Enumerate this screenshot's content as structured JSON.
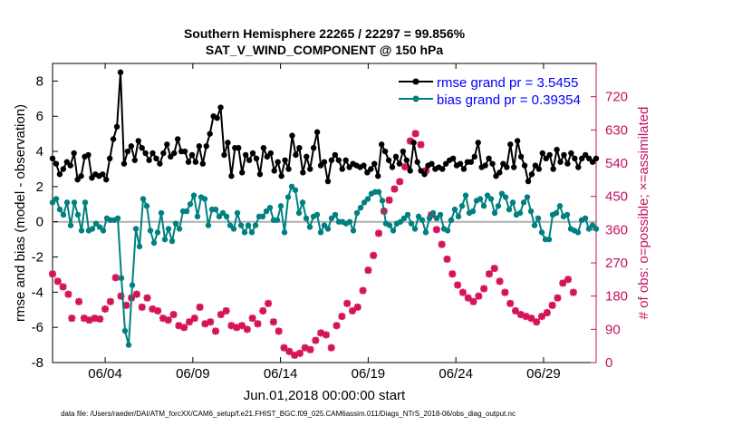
{
  "chart_data": {
    "type": "line",
    "title": "Southern Hemisphere 22265 / 22297 = 99.856%",
    "subtitle": "SAT_V_WIND_COMPONENT @ 150 hPa",
    "xlabel": "Jun.01,2018 00:00:00 start",
    "ylabel": "rmse and bias (model - observation)",
    "ylabel_right": "# of obs: o=possible; ×=assimilated",
    "xlim": [
      1,
      32
    ],
    "ylim": [
      -8,
      9
    ],
    "ylim_right": [
      0,
      810
    ],
    "x_ticks": [
      4,
      9,
      14,
      19,
      24,
      29
    ],
    "x_tick_labels": [
      "06/04",
      "06/09",
      "06/14",
      "06/19",
      "06/24",
      "06/29"
    ],
    "y_ticks": [
      -8,
      -6,
      -4,
      -2,
      0,
      2,
      4,
      6,
      8
    ],
    "y_tick_labels": [
      "-8",
      "-6",
      "-4",
      "-2",
      "0",
      "2",
      "4",
      "6",
      "8"
    ],
    "y_right_ticks": [
      0,
      90,
      180,
      270,
      360,
      450,
      540,
      630,
      720
    ],
    "y_right_tick_labels": [
      "0",
      "90",
      "180",
      "270",
      "360",
      "450",
      "540",
      "630",
      "720"
    ],
    "zero_line": 0,
    "colors": {
      "rmse": "#000000",
      "bias": "#008080",
      "obs": "#d4145a",
      "right_axis": "#c3125e",
      "zero_line": "#b0b0b0",
      "legend_text": "#0000ff"
    },
    "series": [
      {
        "name": "rmse grand pr = 3.5455",
        "values": [
          3.6,
          3.3,
          2.7,
          3.0,
          3.4,
          3.2,
          3.9,
          2.4,
          2.6,
          3.7,
          3.8,
          2.5,
          2.7,
          2.6,
          2.7,
          2.4,
          3.6,
          4.7,
          5.4,
          8.5,
          3.3,
          4.0,
          4.3,
          3.5,
          4.6,
          4.2,
          3.9,
          3.5,
          3.9,
          3.6,
          3.3,
          3.9,
          4.4,
          3.7,
          3.9,
          4.7,
          4.0,
          4.0,
          3.4,
          3.8,
          3.4,
          4.3,
          3.3,
          4.3,
          5.0,
          6.0,
          5.9,
          6.5,
          3.8,
          4.5,
          2.6,
          4.2,
          4.2,
          2.8,
          3.8,
          3.5,
          3.9,
          3.6,
          2.7,
          4.2,
          3.7,
          3.9,
          2.9,
          3.4,
          2.6,
          3.5,
          3.0,
          4.9,
          3.8,
          4.2,
          2.8,
          3.7,
          3.0,
          4.2,
          5.1,
          3.2,
          3.4,
          2.3,
          3.5,
          3.8,
          3.5,
          3.0,
          3.5,
          3.1,
          3.3,
          3.2,
          3.1,
          3.2,
          2.8,
          3.0,
          3.3,
          2.6,
          4.4,
          4.0,
          3.5,
          3.1,
          3.7,
          3.3,
          4.0,
          3.5,
          2.9,
          4.5,
          3.4,
          2.9,
          2.7,
          3.2,
          3.3,
          3.0,
          3.1,
          3.0,
          3.3,
          3.5,
          3.6,
          3.2,
          3.3,
          3.0,
          3.4,
          3.4,
          3.7,
          4.5,
          3.1,
          3.2,
          3.6,
          3.3,
          2.6,
          2.8,
          3.3,
          3.1,
          4.4,
          3.1,
          4.6,
          3.7,
          3.2,
          2.3,
          2.7,
          3.2,
          3.0,
          3.9,
          3.6,
          3.8,
          3.0,
          4.1,
          3.4,
          3.8,
          3.3,
          3.9,
          3.6,
          3.1,
          3.6,
          3.8,
          3.6,
          3.4,
          3.6
        ]
      },
      {
        "name": "bias grand pr = 0.39354",
        "values": [
          1.1,
          1.3,
          0.7,
          0.4,
          1.1,
          -0.2,
          1.1,
          0.4,
          -0.5,
          1.1,
          -0.5,
          -0.4,
          -0.1,
          -0.3,
          -0.5,
          0.2,
          0.1,
          0.1,
          0.2,
          -3.2,
          -6.2,
          -7.0,
          -3.6,
          -0.4,
          -1.4,
          1.3,
          0.9,
          -0.5,
          -1.2,
          -0.6,
          0.5,
          -1.0,
          -0.4,
          -1.1,
          -0.1,
          -0.4,
          0.6,
          0.6,
          1.0,
          1.5,
          0.3,
          1.4,
          1.3,
          -0.2,
          0.7,
          0.7,
          0.3,
          0.5,
          0.3,
          -0.2,
          -0.4,
          0.5,
          -0.2,
          -0.6,
          -0.2,
          -0.6,
          -0.2,
          0.3,
          0.3,
          0.6,
          0.8,
          0.1,
          0.1,
          0.9,
          -0.6,
          1.4,
          2.0,
          1.8,
          0.5,
          1.1,
          0.2,
          -0.3,
          0.3,
          0.4,
          -0.6,
          -0.2,
          -0.4,
          0.2,
          0.4,
          0.0,
          0.0,
          -0.1,
          0.0,
          -0.5,
          0.5,
          0.8,
          1.1,
          1.3,
          1.6,
          1.7,
          1.7,
          1.2,
          -0.1,
          -0.2,
          -0.5,
          -0.1,
          0.0,
          0.2,
          0.4,
          -0.1,
          -0.4,
          0.3,
          0.1,
          -0.6,
          0.2,
          0.5,
          0.2,
          0.4,
          -0.4,
          -0.5,
          0.1,
          0.7,
          0.3,
          0.9,
          1.5,
          0.5,
          0.6,
          1.2,
          1.3,
          0.9,
          1.5,
          1.3,
          0.5,
          0.9,
          1.6,
          1.4,
          0.7,
          1.1,
          0.4,
          0.5,
          1.1,
          1.4,
          0.6,
          -0.2,
          0.2,
          -0.6,
          -1.0,
          -1.0,
          0.4,
          0.5,
          0.9,
          0.3,
          0.4,
          -0.4,
          -0.5,
          -0.6,
          0.1,
          0.2,
          -0.4,
          -0.2,
          -0.4
        ]
      }
    ],
    "obs_assimilated": {
      "name": "# of obs assimilated (right axis)",
      "points": [
        [
          1.0,
          240
        ],
        [
          1.3,
          220
        ],
        [
          1.6,
          205
        ],
        [
          1.9,
          185
        ],
        [
          2.1,
          120
        ],
        [
          2.5,
          165
        ],
        [
          2.8,
          120
        ],
        [
          3.1,
          115
        ],
        [
          3.4,
          120
        ],
        [
          3.7,
          118
        ],
        [
          4.0,
          145
        ],
        [
          4.3,
          165
        ],
        [
          4.6,
          230
        ],
        [
          4.9,
          180
        ],
        [
          5.2,
          155
        ],
        [
          5.5,
          175
        ],
        [
          5.8,
          185
        ],
        [
          6.1,
          150
        ],
        [
          6.4,
          175
        ],
        [
          6.7,
          145
        ],
        [
          7.0,
          140
        ],
        [
          7.3,
          120
        ],
        [
          7.6,
          115
        ],
        [
          7.9,
          130
        ],
        [
          8.2,
          100
        ],
        [
          8.5,
          95
        ],
        [
          8.8,
          110
        ],
        [
          9.1,
          120
        ],
        [
          9.4,
          150
        ],
        [
          9.7,
          105
        ],
        [
          10.0,
          110
        ],
        [
          10.3,
          85
        ],
        [
          10.6,
          130
        ],
        [
          10.9,
          140
        ],
        [
          11.2,
          100
        ],
        [
          11.5,
          95
        ],
        [
          11.8,
          100
        ],
        [
          12.1,
          90
        ],
        [
          12.4,
          120
        ],
        [
          12.7,
          105
        ],
        [
          13.0,
          140
        ],
        [
          13.3,
          160
        ],
        [
          13.6,
          110
        ],
        [
          13.9,
          85
        ],
        [
          14.2,
          40
        ],
        [
          14.5,
          30
        ],
        [
          14.8,
          20
        ],
        [
          15.1,
          25
        ],
        [
          15.4,
          40
        ],
        [
          15.7,
          35
        ],
        [
          16.0,
          60
        ],
        [
          16.3,
          80
        ],
        [
          16.6,
          75
        ],
        [
          16.9,
          40
        ],
        [
          17.2,
          100
        ],
        [
          17.5,
          125
        ],
        [
          17.8,
          160
        ],
        [
          18.1,
          140
        ],
        [
          18.4,
          150
        ],
        [
          18.7,
          195
        ],
        [
          19.0,
          250
        ],
        [
          19.3,
          290
        ],
        [
          19.6,
          350
        ],
        [
          19.9,
          410
        ],
        [
          20.2,
          440
        ],
        [
          20.5,
          470
        ],
        [
          20.8,
          490
        ],
        [
          21.1,
          530
        ],
        [
          21.4,
          600
        ],
        [
          21.7,
          620
        ],
        [
          22.0,
          590
        ],
        [
          22.3,
          520
        ],
        [
          22.6,
          400
        ],
        [
          22.9,
          360
        ],
        [
          23.2,
          320
        ],
        [
          23.5,
          280
        ],
        [
          23.8,
          240
        ],
        [
          24.1,
          210
        ],
        [
          24.4,
          190
        ],
        [
          24.7,
          175
        ],
        [
          25.0,
          165
        ],
        [
          25.3,
          180
        ],
        [
          25.6,
          200
        ],
        [
          25.9,
          240
        ],
        [
          26.2,
          255
        ],
        [
          26.5,
          220
        ],
        [
          26.8,
          190
        ],
        [
          27.1,
          160
        ],
        [
          27.4,
          140
        ],
        [
          27.7,
          130
        ],
        [
          28.0,
          125
        ],
        [
          28.3,
          120
        ],
        [
          28.6,
          110
        ],
        [
          28.9,
          125
        ],
        [
          29.2,
          135
        ],
        [
          29.5,
          155
        ],
        [
          29.8,
          175
        ],
        [
          30.1,
          215
        ],
        [
          30.4,
          225
        ],
        [
          30.7,
          190
        ]
      ]
    }
  },
  "footer_text": "data file: /Users/raeder/DAI/ATM_forcXX/CAM6_setup/f.e21.FHIST_BGC.f09_025.CAM6assim.011/Diags_NTrS_2018-06/obs_diag_output.nc"
}
